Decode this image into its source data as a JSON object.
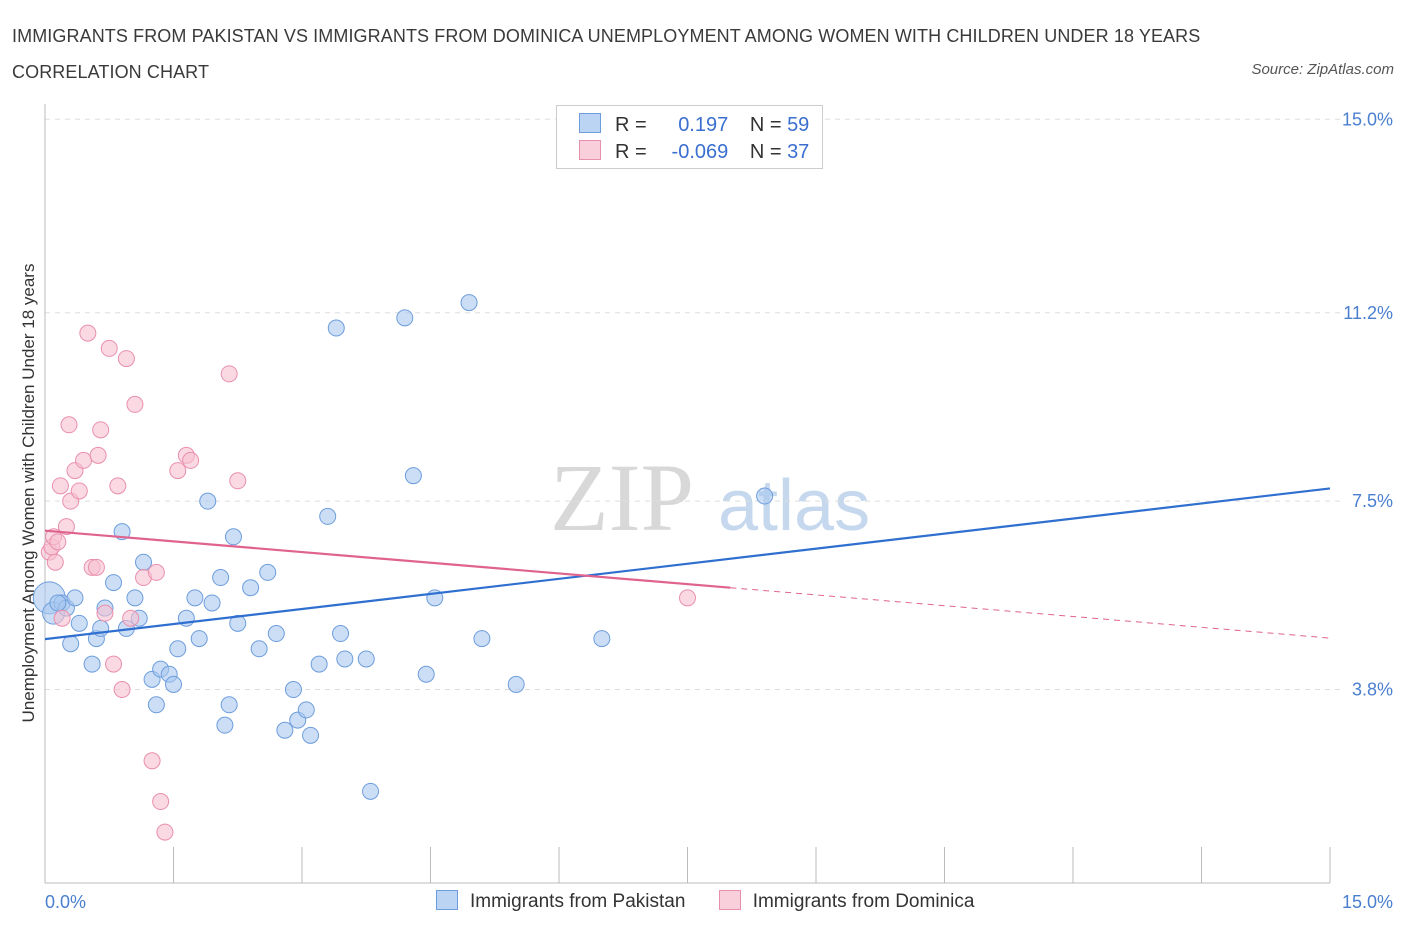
{
  "title": "IMMIGRANTS FROM PAKISTAN VS IMMIGRANTS FROM DOMINICA UNEMPLOYMENT AMONG WOMEN WITH CHILDREN UNDER 18 YEARS CORRELATION CHART",
  "source": "Source: ZipAtlas.com",
  "watermark": {
    "zip": "ZIP",
    "atlas": "atlas"
  },
  "legend": {
    "r_label": "R =",
    "n_label": "N =",
    "rows": [
      {
        "r": "0.197",
        "n": "59"
      },
      {
        "r": "-0.069",
        "n": "37"
      }
    ]
  },
  "colors": {
    "pakistan_fill": "#a9c8f0",
    "pakistan_stroke": "#6d9ddc",
    "pakistan_line": "#2f6fd0",
    "dominica_fill": "#f6bfd0",
    "dominica_stroke": "#e98fae",
    "dominica_line": "#e0628f",
    "tick_text": "#4a7fd0",
    "grid": "#dddddd"
  },
  "chart_data": {
    "type": "scatter",
    "title": "IMMIGRANTS FROM PAKISTAN VS IMMIGRANTS FROM DOMINICA UNEMPLOYMENT AMONG WOMEN WITH CHILDREN UNDER 18 YEARS CORRELATION CHART",
    "xlabel": "",
    "ylabel": "Unemployment Among Women with Children Under 18 years",
    "xlim": [
      0,
      15
    ],
    "ylim": [
      0,
      15.3
    ],
    "x_tick_labels": [
      "0.0%",
      "15.0%"
    ],
    "y_ticks": [
      3.8,
      7.5,
      11.2,
      15.0
    ],
    "y_tick_labels": [
      "3.8%",
      "7.5%",
      "11.2%",
      "15.0%"
    ],
    "grid": true,
    "legend_position": "top-center",
    "series": [
      {
        "name": "Immigrants from Pakistan",
        "trend": {
          "x0": 0,
          "y0": 4.79,
          "x1": 15,
          "y1": 7.75
        },
        "points": [
          [
            0.05,
            5.6
          ],
          [
            0.1,
            5.3
          ],
          [
            0.2,
            5.5
          ],
          [
            0.25,
            5.4
          ],
          [
            0.3,
            4.7
          ],
          [
            0.35,
            5.6
          ],
          [
            0.4,
            5.1
          ],
          [
            0.55,
            4.3
          ],
          [
            0.6,
            4.8
          ],
          [
            0.65,
            5.0
          ],
          [
            0.7,
            5.4
          ],
          [
            0.8,
            5.9
          ],
          [
            0.9,
            6.9
          ],
          [
            0.95,
            5.0
          ],
          [
            1.05,
            5.6
          ],
          [
            1.1,
            5.2
          ],
          [
            1.15,
            6.3
          ],
          [
            1.25,
            4.0
          ],
          [
            1.3,
            3.5
          ],
          [
            1.35,
            4.2
          ],
          [
            1.45,
            4.1
          ],
          [
            1.5,
            3.9
          ],
          [
            1.55,
            4.6
          ],
          [
            1.65,
            5.2
          ],
          [
            1.75,
            5.6
          ],
          [
            1.8,
            4.8
          ],
          [
            1.9,
            7.5
          ],
          [
            1.95,
            5.5
          ],
          [
            2.05,
            6.0
          ],
          [
            2.1,
            3.1
          ],
          [
            2.15,
            3.5
          ],
          [
            2.2,
            6.8
          ],
          [
            2.25,
            5.1
          ],
          [
            2.4,
            5.8
          ],
          [
            2.5,
            4.6
          ],
          [
            2.6,
            6.1
          ],
          [
            2.7,
            4.9
          ],
          [
            2.8,
            3.0
          ],
          [
            2.9,
            3.8
          ],
          [
            2.95,
            3.2
          ],
          [
            3.05,
            3.4
          ],
          [
            3.1,
            2.9
          ],
          [
            3.2,
            4.3
          ],
          [
            3.3,
            7.2
          ],
          [
            3.4,
            10.9
          ],
          [
            3.45,
            4.9
          ],
          [
            3.5,
            4.4
          ],
          [
            3.75,
            4.4
          ],
          [
            3.8,
            1.8
          ],
          [
            4.2,
            11.1
          ],
          [
            4.3,
            8.0
          ],
          [
            4.45,
            4.1
          ],
          [
            4.55,
            5.6
          ],
          [
            4.95,
            11.4
          ],
          [
            5.1,
            4.8
          ],
          [
            5.5,
            3.9
          ],
          [
            6.5,
            4.8
          ],
          [
            8.4,
            7.6
          ],
          [
            0.15,
            5.5
          ]
        ]
      },
      {
        "name": "Immigrants from Dominica",
        "trend_solid": {
          "x0": 0,
          "y0": 6.92,
          "x1": 8.0,
          "y1": 5.8
        },
        "trend_dashed": {
          "x0": 8.0,
          "y0": 5.8,
          "x1": 15,
          "y1": 4.81
        },
        "points": [
          [
            0.05,
            6.5
          ],
          [
            0.08,
            6.6
          ],
          [
            0.1,
            6.8
          ],
          [
            0.12,
            6.3
          ],
          [
            0.15,
            6.7
          ],
          [
            0.18,
            7.8
          ],
          [
            0.2,
            5.2
          ],
          [
            0.25,
            7.0
          ],
          [
            0.28,
            9.0
          ],
          [
            0.3,
            7.5
          ],
          [
            0.35,
            8.1
          ],
          [
            0.4,
            7.7
          ],
          [
            0.45,
            8.3
          ],
          [
            0.5,
            10.8
          ],
          [
            0.55,
            6.2
          ],
          [
            0.6,
            6.2
          ],
          [
            0.62,
            8.4
          ],
          [
            0.65,
            8.9
          ],
          [
            0.7,
            5.3
          ],
          [
            0.75,
            10.5
          ],
          [
            0.8,
            4.3
          ],
          [
            0.85,
            7.8
          ],
          [
            0.9,
            3.8
          ],
          [
            0.95,
            10.3
          ],
          [
            1.0,
            5.2
          ],
          [
            1.05,
            9.4
          ],
          [
            1.15,
            6.0
          ],
          [
            1.25,
            2.4
          ],
          [
            1.3,
            6.1
          ],
          [
            1.35,
            1.6
          ],
          [
            1.4,
            1.0
          ],
          [
            1.55,
            8.1
          ],
          [
            1.65,
            8.4
          ],
          [
            1.7,
            8.3
          ],
          [
            2.15,
            10.0
          ],
          [
            2.25,
            7.9
          ],
          [
            7.5,
            5.6
          ]
        ]
      }
    ]
  },
  "bottom_legend": [
    "Immigrants from Pakistan",
    "Immigrants from Dominica"
  ]
}
